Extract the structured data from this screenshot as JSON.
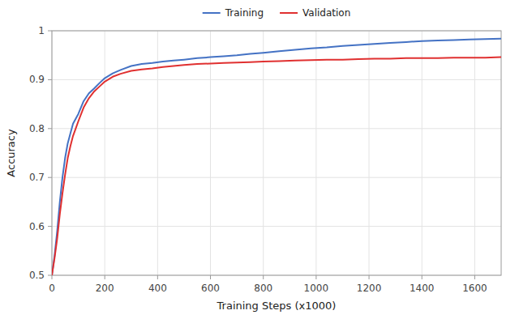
{
  "chart_data": {
    "type": "line",
    "xlabel": "Training Steps (x1000)",
    "ylabel": "Accuracy",
    "x": [
      0,
      10,
      20,
      30,
      40,
      50,
      60,
      70,
      80,
      90,
      100,
      120,
      140,
      160,
      180,
      200,
      230,
      260,
      300,
      340,
      380,
      420,
      460,
      500,
      550,
      600,
      650,
      700,
      750,
      800,
      860,
      920,
      980,
      1040,
      1100,
      1160,
      1220,
      1280,
      1340,
      1400,
      1460,
      1520,
      1580,
      1640,
      1700
    ],
    "series": [
      {
        "name": "Training",
        "color": "#4472C4",
        "values": [
          0.5,
          0.54,
          0.59,
          0.65,
          0.7,
          0.74,
          0.77,
          0.79,
          0.81,
          0.82,
          0.83,
          0.856,
          0.872,
          0.882,
          0.893,
          0.903,
          0.913,
          0.92,
          0.928,
          0.932,
          0.934,
          0.937,
          0.939,
          0.941,
          0.944,
          0.946,
          0.948,
          0.95,
          0.953,
          0.955,
          0.958,
          0.961,
          0.964,
          0.966,
          0.969,
          0.971,
          0.973,
          0.975,
          0.977,
          0.979,
          0.98,
          0.981,
          0.982,
          0.983,
          0.984
        ]
      },
      {
        "name": "Validation",
        "color": "#E03030",
        "values": [
          0.5,
          0.535,
          0.575,
          0.625,
          0.668,
          0.706,
          0.74,
          0.764,
          0.785,
          0.8,
          0.815,
          0.843,
          0.862,
          0.876,
          0.886,
          0.896,
          0.906,
          0.912,
          0.918,
          0.921,
          0.923,
          0.926,
          0.928,
          0.93,
          0.932,
          0.933,
          0.934,
          0.935,
          0.936,
          0.937,
          0.938,
          0.939,
          0.94,
          0.941,
          0.941,
          0.942,
          0.943,
          0.943,
          0.944,
          0.944,
          0.944,
          0.945,
          0.945,
          0.945,
          0.946
        ]
      }
    ],
    "xlim": [
      0,
      1700
    ],
    "ylim": [
      0.5,
      1.0
    ],
    "xticks": [
      0,
      200,
      400,
      600,
      800,
      1000,
      1200,
      1400,
      1600
    ],
    "yticks": [
      0.5,
      0.6,
      0.7,
      0.8,
      0.9,
      1
    ],
    "grid": true,
    "legend": "top"
  }
}
